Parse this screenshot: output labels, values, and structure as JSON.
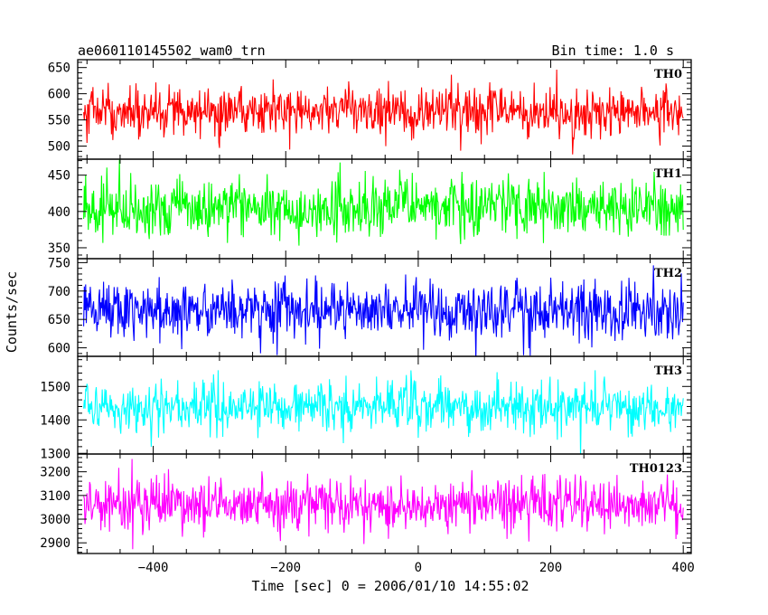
{
  "chart_data": {
    "type": "line",
    "title_left": "ae060110145502_wam0_trn",
    "title_right": "Bin time: 1.0 s",
    "xlabel": "Time [sec] 0 = 2006/01/10 14:55:02",
    "ylabel": "Counts/sec",
    "xlim": [
      -514,
      412
    ],
    "data_x_range": [
      -505,
      400
    ],
    "x_step": 1,
    "x_ticks": [
      -400,
      -200,
      0,
      200,
      400
    ],
    "x_tick_labels": [
      "−400",
      "−200",
      "0",
      "200",
      "400"
    ],
    "grid": false,
    "panels": [
      {
        "name": "TH0",
        "color": "#ff0000",
        "ylim": [
          475,
          665
        ],
        "yticks": [
          500,
          550,
          600,
          650
        ],
        "ytick_labels": [
          "500",
          "550",
          "600",
          "650"
        ],
        "mean": 565,
        "sigma": 24
      },
      {
        "name": "TH1",
        "color": "#00ff00",
        "ylim": [
          335,
          472
        ],
        "yticks": [
          350,
          400,
          450
        ],
        "ytick_labels": [
          "350",
          "400",
          "450"
        ],
        "mean": 405,
        "sigma": 20
      },
      {
        "name": "TH2",
        "color": "#0000ff",
        "ylim": [
          585,
          757
        ],
        "yticks": [
          600,
          650,
          700,
          750
        ],
        "ytick_labels": [
          "600",
          "650",
          "700",
          "750"
        ],
        "mean": 667,
        "sigma": 26
      },
      {
        "name": "TH3",
        "color": "#00ffff",
        "ylim": [
          1298,
          1590
        ],
        "yticks": [
          1300,
          1400,
          1500
        ],
        "ytick_labels": [
          "1300",
          "1400",
          "1500"
        ],
        "mean": 1440,
        "sigma": 38
      },
      {
        "name": "TH0123",
        "color": "#ff00ff",
        "ylim": [
          2855,
          3275
        ],
        "yticks": [
          2900,
          3000,
          3100,
          3200
        ],
        "ytick_labels": [
          "2900",
          "3000",
          "3100",
          "3200"
        ],
        "mean": 3060,
        "sigma": 55
      }
    ]
  }
}
